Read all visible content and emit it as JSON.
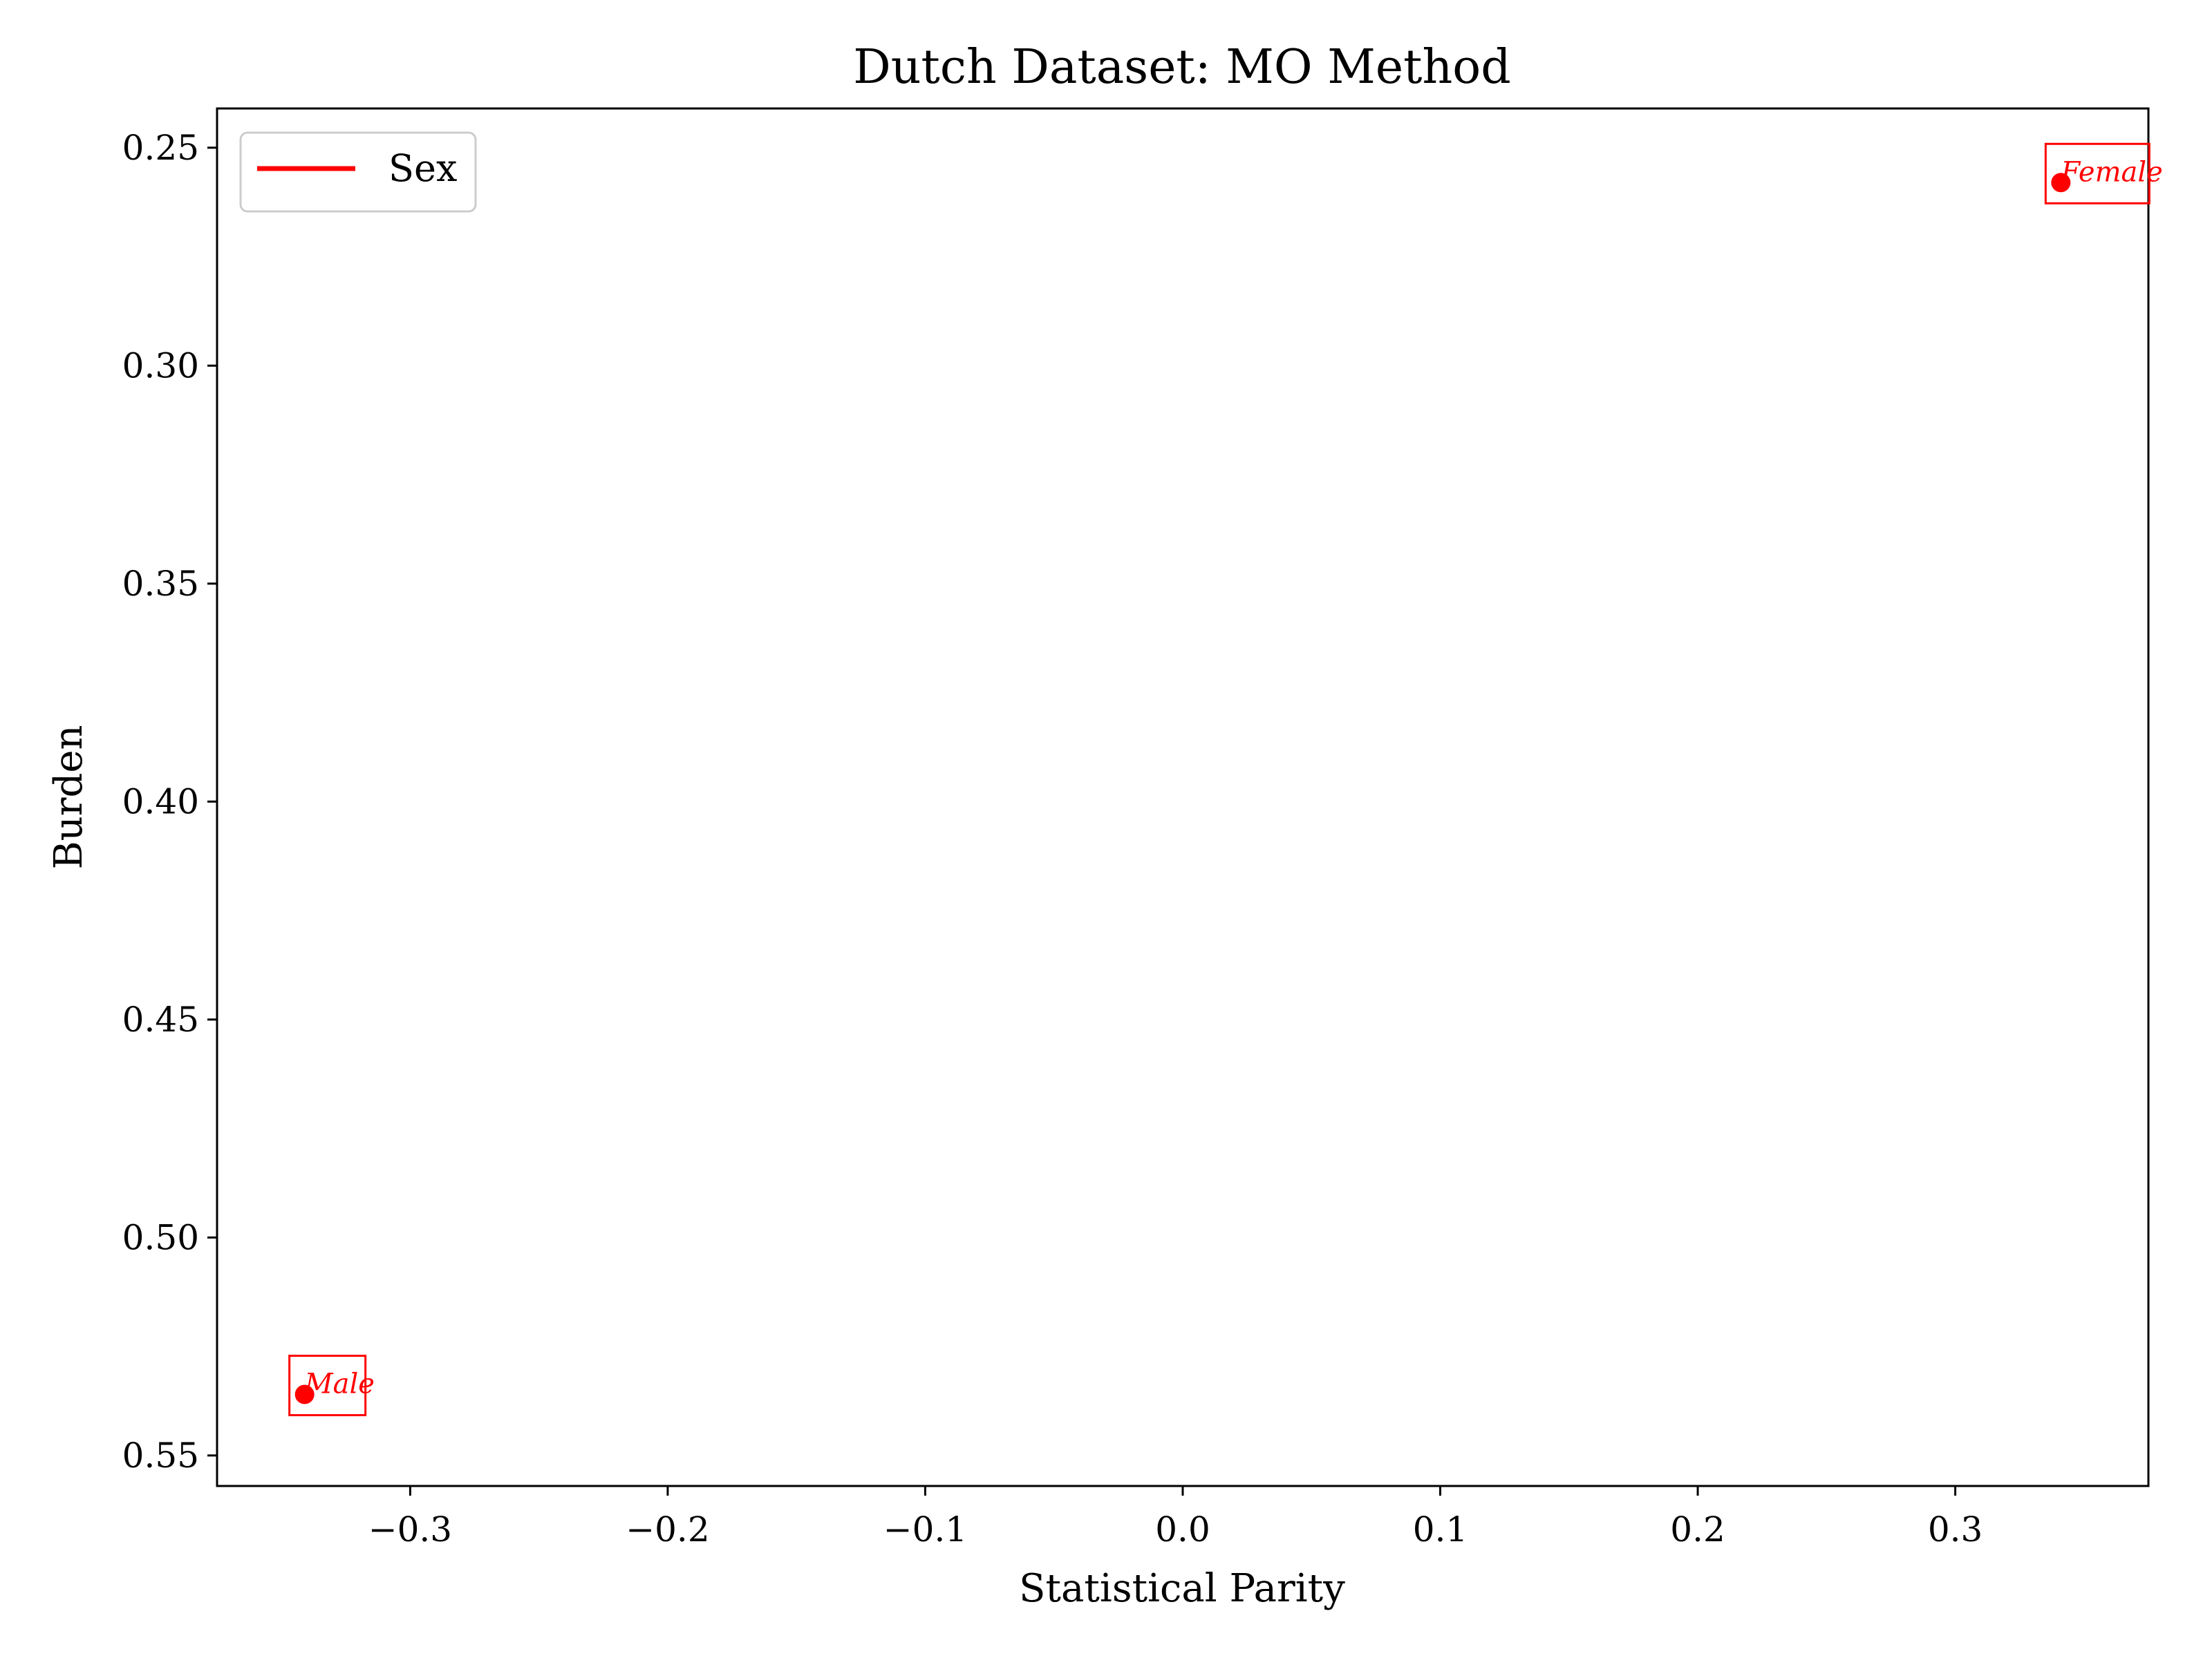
{
  "chart_data": {
    "type": "scatter",
    "title": "Dutch Dataset: MO Method",
    "xlabel": "Statistical Parity",
    "ylabel": "Burden",
    "xlim": [
      -0.375,
      0.375
    ],
    "ylim": [
      0.557,
      0.241
    ],
    "y_inverted": true,
    "xticks": [
      -0.3,
      -0.2,
      -0.1,
      0.0,
      0.1,
      0.2,
      0.3
    ],
    "xtick_labels": [
      "−0.3",
      "−0.2",
      "−0.1",
      "0.0",
      "0.1",
      "0.2",
      "0.3"
    ],
    "yticks": [
      0.25,
      0.3,
      0.35,
      0.4,
      0.45,
      0.5,
      0.55
    ],
    "ytick_labels": [
      "0.25",
      "0.30",
      "0.35",
      "0.40",
      "0.45",
      "0.50",
      "0.55"
    ],
    "grid": false,
    "legend": {
      "position": "upper-left",
      "entries": [
        {
          "label": "Sex",
          "color": "#ff0000"
        }
      ]
    },
    "series": [
      {
        "name": "Sex",
        "color": "#ff0000",
        "points": [
          {
            "label": "Male",
            "x": -0.341,
            "y": 0.536
          },
          {
            "label": "Female",
            "x": 0.341,
            "y": 0.258
          }
        ]
      }
    ]
  }
}
